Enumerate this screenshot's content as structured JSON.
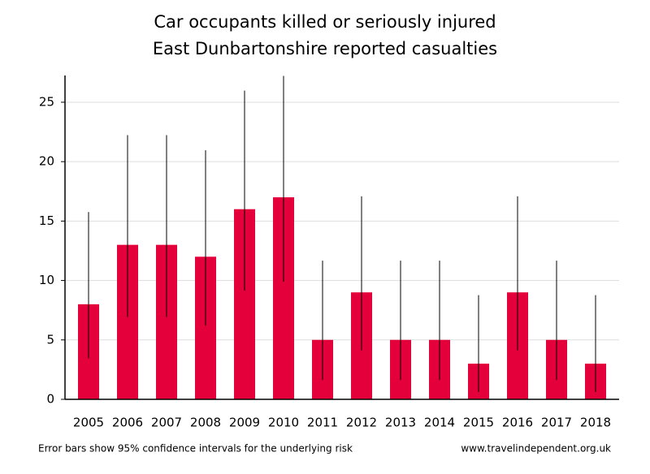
{
  "chart_data": {
    "type": "bar",
    "title": "Car occupants killed or seriously injured",
    "subtitle": "East Dunbartonshire reported casualties",
    "categories": [
      "2005",
      "2006",
      "2007",
      "2008",
      "2009",
      "2010",
      "2011",
      "2012",
      "2013",
      "2014",
      "2015",
      "2016",
      "2017",
      "2018"
    ],
    "values": [
      8,
      13,
      13,
      12,
      16,
      17,
      5,
      9,
      5,
      5,
      3,
      9,
      5,
      3
    ],
    "ci_lower": [
      3.45,
      6.92,
      6.92,
      6.2,
      9.15,
      9.9,
      1.62,
      4.12,
      1.62,
      1.62,
      0.62,
      4.12,
      1.62,
      0.62
    ],
    "ci_upper": [
      15.76,
      22.23,
      22.23,
      20.96,
      25.98,
      27.22,
      11.67,
      17.08,
      11.67,
      11.67,
      8.77,
      17.08,
      11.67,
      8.77
    ],
    "color": "#e4003b",
    "ylim": [
      0,
      27.25
    ],
    "yticks": [
      0,
      5,
      10,
      15,
      20,
      25
    ],
    "grid": true,
    "footnote": "Error bars show 95% confidence intervals for the underlying risk",
    "source": "www.travelindependent.org.uk"
  }
}
